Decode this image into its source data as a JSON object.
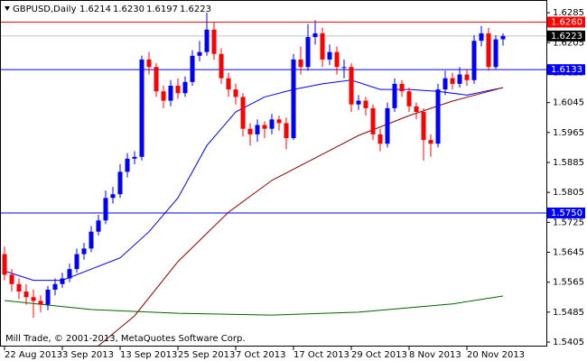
{
  "chart_data": {
    "type": "candlestick",
    "header": {
      "symbol": "GBPUSD,Daily",
      "ohlc": [
        "1.6214",
        "1.6230",
        "1.6197",
        "1.6223"
      ]
    },
    "footer": "Mill Trade, © 2001-2013, MetaQuotes Software Corp.",
    "categories": [
      "22 Aug 2013",
      null,
      null,
      null,
      null,
      null,
      null,
      null,
      "3 Sep 2013",
      null,
      null,
      null,
      null,
      null,
      null,
      null,
      "13 Sep 2013",
      null,
      null,
      null,
      null,
      null,
      null,
      null,
      "25 Sep 2013",
      null,
      null,
      null,
      null,
      null,
      null,
      null,
      "7 Oct 2013",
      null,
      null,
      null,
      null,
      null,
      null,
      null,
      "17 Oct 2013",
      null,
      null,
      null,
      null,
      null,
      null,
      null,
      "29 Oct 2013",
      null,
      null,
      null,
      null,
      null,
      null,
      null,
      "8 Nov 2013",
      null,
      null,
      null,
      null,
      null,
      null,
      null,
      "20 Nov 2013",
      null,
      null,
      null,
      null,
      null
    ],
    "open": [
      1.564,
      1.5585,
      1.556,
      1.554,
      1.5525,
      1.5515,
      1.5505,
      1.5545,
      1.556,
      1.5575,
      1.56,
      1.564,
      1.5655,
      1.57,
      1.573,
      1.579,
      1.58,
      1.586,
      1.5895,
      1.59,
      1.616,
      1.614,
      1.6075,
      1.605,
      1.609,
      1.607,
      1.61,
      1.617,
      1.618,
      1.624,
      1.6175,
      1.611,
      1.608,
      1.606,
      1.5975,
      1.596,
      1.5985,
      1.5975,
      1.6,
      1.599,
      1.595,
      1.616,
      1.614,
      1.622,
      1.623,
      1.616,
      1.618,
      1.614,
      1.614,
      1.604,
      1.605,
      1.603,
      1.596,
      1.5935,
      1.603,
      1.6095,
      1.6075,
      1.6035,
      1.602,
      1.5945,
      1.5935,
      1.608,
      1.611,
      1.6095,
      1.612,
      1.6105,
      1.621,
      1.623,
      1.614,
      1.6214
    ],
    "high": [
      1.566,
      1.56,
      1.5575,
      1.556,
      1.5545,
      1.553,
      1.5555,
      1.5575,
      1.559,
      1.5615,
      1.5655,
      1.567,
      1.5715,
      1.5745,
      1.581,
      1.582,
      1.588,
      1.591,
      1.5915,
      1.617,
      1.618,
      1.615,
      1.609,
      1.6105,
      1.611,
      1.6115,
      1.6185,
      1.621,
      1.6285,
      1.626,
      1.619,
      1.6125,
      1.6095,
      1.607,
      1.599,
      1.6,
      1.5995,
      1.6015,
      1.601,
      1.6005,
      1.6175,
      1.6195,
      1.6255,
      1.6265,
      1.6245,
      1.62,
      1.6195,
      1.616,
      1.615,
      1.6065,
      1.606,
      1.604,
      1.5975,
      1.6045,
      1.611,
      1.6105,
      1.6085,
      1.6045,
      1.603,
      1.596,
      1.6095,
      1.613,
      1.6125,
      1.614,
      1.6135,
      1.6225,
      1.625,
      1.6245,
      1.6225,
      1.623
    ],
    "low": [
      1.557,
      1.554,
      1.552,
      1.5505,
      1.547,
      1.5485,
      1.549,
      1.553,
      1.555,
      1.5565,
      1.559,
      1.5625,
      1.5645,
      1.569,
      1.572,
      1.5775,
      1.579,
      1.5845,
      1.588,
      1.589,
      1.612,
      1.606,
      1.603,
      1.6035,
      1.6055,
      1.606,
      1.609,
      1.6155,
      1.617,
      1.616,
      1.6095,
      1.606,
      1.604,
      1.5955,
      1.593,
      1.594,
      1.595,
      1.596,
      1.597,
      1.592,
      1.5945,
      1.612,
      1.613,
      1.62,
      1.614,
      1.6145,
      1.612,
      1.611,
      1.602,
      1.6025,
      1.601,
      1.5945,
      1.5915,
      1.5925,
      1.602,
      1.606,
      1.602,
      1.6,
      1.589,
      1.59,
      1.5925,
      1.6065,
      1.608,
      1.6085,
      1.609,
      1.6095,
      1.6195,
      1.613,
      1.6135,
      1.6197
    ],
    "close": [
      1.5585,
      1.556,
      1.554,
      1.5525,
      1.5515,
      1.5505,
      1.5545,
      1.556,
      1.5575,
      1.56,
      1.564,
      1.5655,
      1.57,
      1.573,
      1.579,
      1.58,
      1.586,
      1.5895,
      1.59,
      1.616,
      1.614,
      1.6075,
      1.605,
      1.609,
      1.607,
      1.61,
      1.617,
      1.618,
      1.624,
      1.6175,
      1.611,
      1.608,
      1.606,
      1.5975,
      1.596,
      1.5985,
      1.5975,
      1.6,
      1.599,
      1.595,
      1.616,
      1.614,
      1.622,
      1.623,
      1.616,
      1.618,
      1.614,
      1.614,
      1.604,
      1.605,
      1.603,
      1.596,
      1.5935,
      1.603,
      1.6095,
      1.6075,
      1.6035,
      1.602,
      1.5945,
      1.5935,
      1.608,
      1.611,
      1.6095,
      1.612,
      1.6105,
      1.621,
      1.623,
      1.614,
      1.6214,
      1.6223
    ],
    "up_color": "#0000ff",
    "down_color": "#ff0000",
    "lines": [
      {
        "color": "#0000ff",
        "x": [
          0,
          4,
          8,
          12,
          16,
          20,
          24,
          28,
          32,
          36,
          40,
          44,
          48,
          52,
          56,
          60,
          64,
          69
        ],
        "values": [
          1.5595,
          1.557,
          1.557,
          1.56,
          1.563,
          1.57,
          1.579,
          1.593,
          1.602,
          1.606,
          1.608,
          1.6095,
          1.6105,
          1.608,
          1.608,
          1.6075,
          1.6065,
          1.6085
        ]
      },
      {
        "color": "#8b0000",
        "x": [
          13,
          18,
          24,
          31,
          37,
          43,
          49,
          56,
          62,
          69
        ],
        "values": [
          1.5395,
          1.5475,
          1.562,
          1.5752,
          1.5837,
          1.5897,
          1.5957,
          1.601,
          1.6049,
          1.6085
        ]
      },
      {
        "color": "#006400",
        "x": [
          0,
          12,
          24,
          37,
          49,
          62,
          69
        ],
        "values": [
          1.5516,
          1.5492,
          1.5482,
          1.5477,
          1.5485,
          1.5507,
          1.5528
        ]
      }
    ],
    "levels": [
      {
        "value": 1.626,
        "label": "1.6260",
        "color": "#ff0000"
      },
      {
        "value": 1.6223,
        "label": "1.6223",
        "color": "#000000"
      },
      {
        "value": 1.6133,
        "label": "1.6133",
        "color": "#0000ff"
      },
      {
        "value": 1.575,
        "label": "1.5750",
        "color": "#0000ff"
      }
    ],
    "ylim": [
      1.5393,
      1.6307
    ],
    "yticks": [
      1.6285,
      1.6205,
      1.6125,
      1.6045,
      1.5965,
      1.5885,
      1.5805,
      1.5725,
      1.5645,
      1.5565,
      1.5485,
      1.5405
    ]
  }
}
